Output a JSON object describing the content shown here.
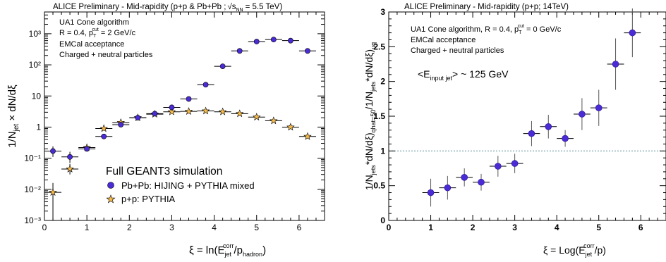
{
  "colors": {
    "pbpb_marker": "#4b2bd6",
    "pp_marker": "#f5b94a",
    "reference_line": "#6b9aa0",
    "axis": "#000000"
  },
  "marker_names": {
    "circle": "filled-circle",
    "star": "star"
  },
  "chart_data": [
    {
      "type": "scatter",
      "title": "ALICE Preliminary - Mid-rapidity (p+p & Pb+Pb ;",
      "title_sqrt_part": "√s",
      "title_sqrt_sub": "NN",
      "title_tail": "= 5.5 TeV)",
      "ylabel_parts": [
        "1/N",
        "jet",
        " × dN/dξ"
      ],
      "xlabel_parts": [
        "ξ = ln(E",
        "jet",
        "corr",
        "/p",
        "hadron",
        ")"
      ],
      "yscale": "log",
      "xlim": [
        0,
        6.6
      ],
      "ylim": [
        0.001,
        5000
      ],
      "xticks": [
        "0",
        "1",
        "2",
        "3",
        "4",
        "5",
        "6"
      ],
      "yticks": [
        "10⁻³",
        "10⁻²",
        "10⁻¹",
        "1",
        "10",
        "10²",
        "10³"
      ],
      "grid": false,
      "info_lines": [
        "UA1 Cone algorithm",
        "R = 0.4, p",
        "T",
        "cut",
        "= 2 GeV/c",
        "EMCal acceptance",
        "Charged + neutral particles"
      ],
      "legend_title": "Full GEANT3 simulation",
      "legend_position": "bottom-left",
      "series": [
        {
          "name": "Pb+Pb: HIJING + PYTHIA mixed",
          "marker": "circle",
          "x": [
            0.2,
            0.6,
            1.0,
            1.4,
            1.8,
            2.2,
            2.6,
            3.0,
            3.4,
            3.8,
            4.2,
            4.6,
            5.0,
            5.4,
            5.8,
            6.2
          ],
          "y": [
            0.17,
            0.11,
            0.2,
            0.5,
            1.2,
            2.0,
            2.7,
            4.3,
            8.0,
            23,
            90,
            280,
            560,
            650,
            600,
            280
          ],
          "ylow": [
            0.11,
            0.07,
            0.18,
            0.45,
            1.1,
            1.85,
            2.5,
            4.0,
            7.5,
            21,
            85,
            265,
            530,
            615,
            570,
            265
          ],
          "yhigh": [
            0.24,
            0.16,
            0.22,
            0.55,
            1.3,
            2.15,
            2.9,
            4.6,
            8.5,
            25,
            95,
            295,
            590,
            685,
            630,
            295
          ],
          "xerr": 0.2
        },
        {
          "name": "p+p: PYTHIA",
          "marker": "star",
          "x": [
            0.2,
            0.6,
            1.0,
            1.4,
            1.8,
            2.2,
            2.6,
            3.0,
            3.4,
            3.8,
            4.2,
            4.6,
            5.0,
            5.4,
            5.8,
            6.2
          ],
          "y": [
            0.008,
            0.045,
            0.22,
            0.9,
            1.4,
            2.0,
            2.6,
            3.1,
            3.2,
            3.3,
            3.1,
            2.7,
            2.1,
            1.6,
            1.0,
            0.5
          ],
          "ylow": [
            0.001,
            0.03,
            0.2,
            0.85,
            1.35,
            1.92,
            2.5,
            3.0,
            3.1,
            3.2,
            3.0,
            2.6,
            2.0,
            1.52,
            0.95,
            0.46
          ],
          "yhigh": [
            0.016,
            0.065,
            0.24,
            0.95,
            1.45,
            2.08,
            2.7,
            3.2,
            3.3,
            3.4,
            3.2,
            2.8,
            2.2,
            1.68,
            1.05,
            0.54
          ],
          "xerr": 0.2
        }
      ]
    },
    {
      "type": "scatter",
      "title": "ALICE Preliminary - Mid-rapidity (p+p; 14TeV)",
      "ylabel": "1/N_jets*dN/dξ)_qhat=50/1/N_jets*dN/dξ)_uq",
      "xlabel_parts": [
        "ξ = Log(E",
        "jet",
        "corr",
        "/p)"
      ],
      "yscale": "linear",
      "xlim": [
        0,
        6.6
      ],
      "ylim": [
        0,
        3
      ],
      "xticks": [
        "0",
        "1",
        "2",
        "3",
        "4",
        "5",
        "6"
      ],
      "yticks": [
        "0",
        "0.5",
        "1",
        "1.5",
        "2",
        "2.5",
        "3"
      ],
      "grid": false,
      "reference_line_y": 1,
      "info_lines": [
        "UA1 Cone algorithm, R = 0.4, p",
        "T",
        "cut",
        "= 0 GeV/c",
        "EMCal acceptance",
        "Charged + neutral particles"
      ],
      "annotation_parts": [
        "<E",
        "input jet",
        "> ~ 125 GeV"
      ],
      "series": [
        {
          "marker": "circle",
          "x": [
            1.0,
            1.4,
            1.8,
            2.2,
            2.6,
            3.0,
            3.4,
            3.8,
            4.2,
            4.6,
            5.0,
            5.4,
            5.8
          ],
          "y": [
            0.4,
            0.47,
            0.62,
            0.55,
            0.78,
            0.82,
            1.25,
            1.35,
            1.18,
            1.53,
            1.62,
            2.25,
            2.7
          ],
          "yerr": [
            0.2,
            0.17,
            0.13,
            0.12,
            0.15,
            0.14,
            0.18,
            0.17,
            0.12,
            0.23,
            0.26,
            0.37,
            0.35
          ],
          "xerr": 0.2
        }
      ]
    }
  ],
  "ylabel_right": {
    "p1": "1/N",
    "s1": "jets",
    "p2": "*dN/dξ)",
    "s2": "qhat=50",
    "p3": "/1/N",
    "s3": "jets",
    "p4": "*dN/dξ)",
    "s4": "uq"
  }
}
